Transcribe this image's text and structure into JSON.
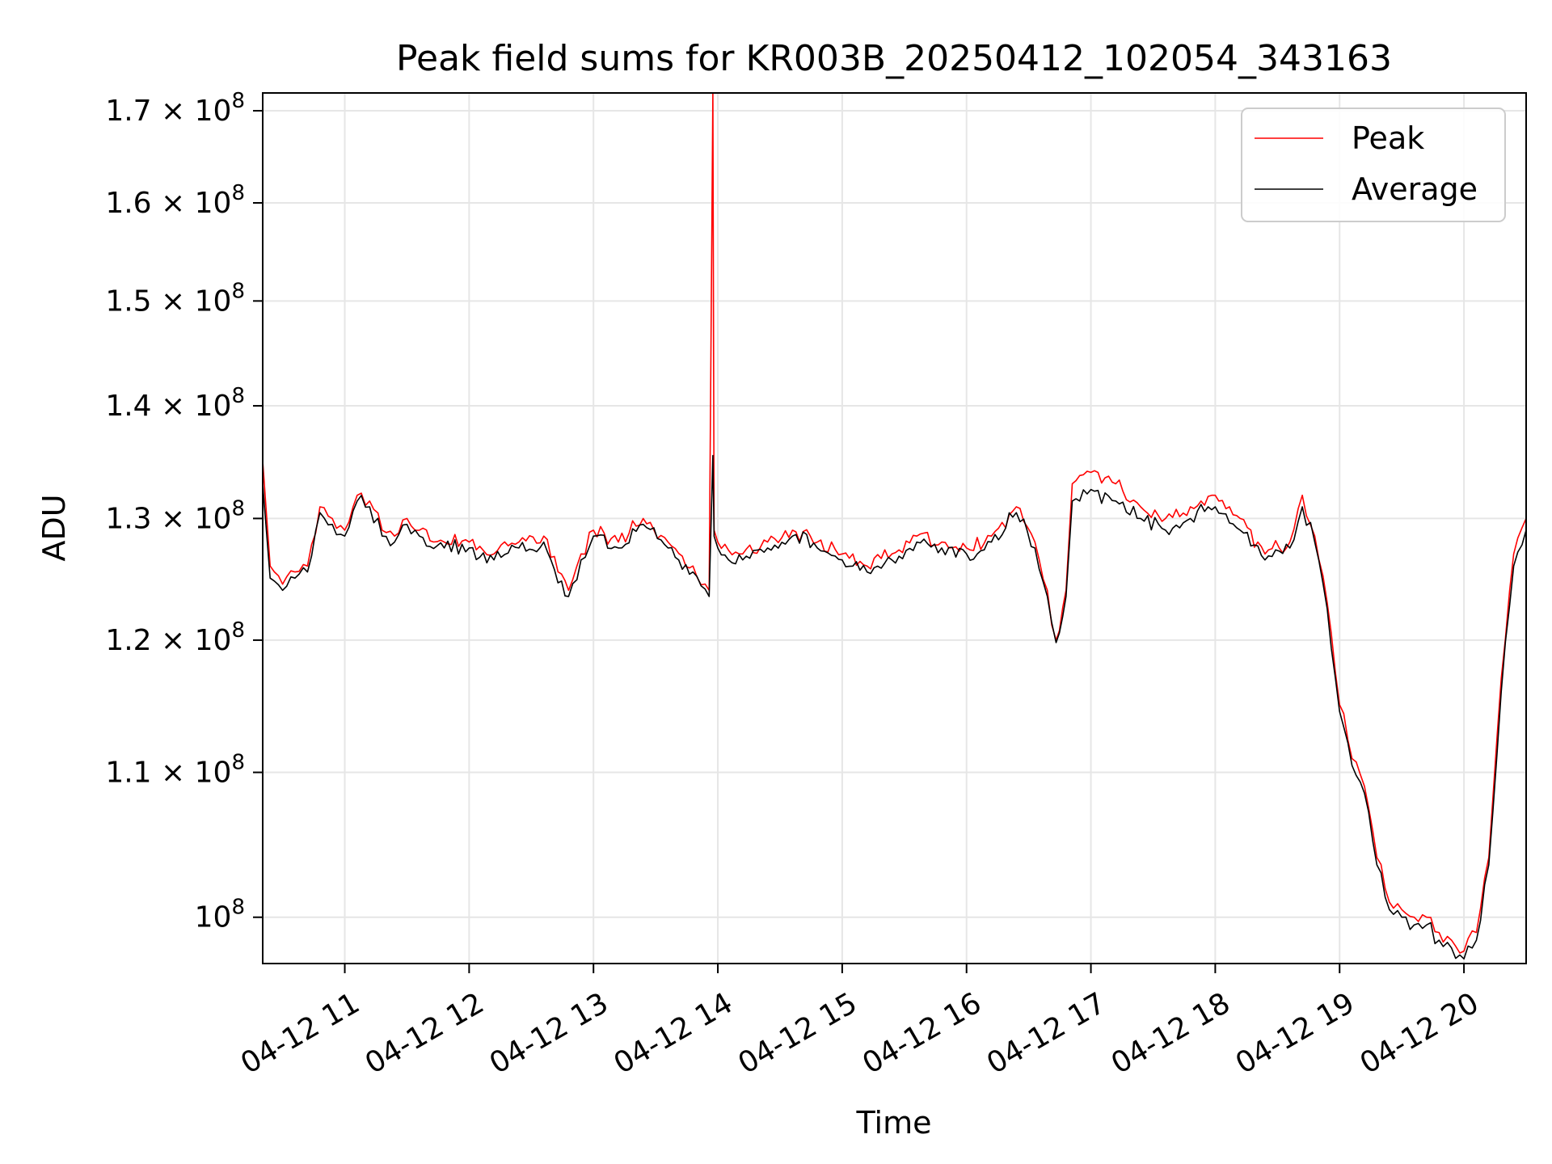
{
  "chart_data": {
    "type": "line",
    "title": "Peak field sums for KR003B_20250412_102054_343163",
    "xlabel": "Time",
    "ylabel": "ADU",
    "yscale": "log",
    "ylim": [
      97000000,
      172000000
    ],
    "xlim": [
      10.34,
      20.5
    ],
    "grid": true,
    "legend_position": "top-right",
    "x_ticks": [
      {
        "value": 11,
        "label": "04-12 11"
      },
      {
        "value": 12,
        "label": "04-12 12"
      },
      {
        "value": 13,
        "label": "04-12 13"
      },
      {
        "value": 14,
        "label": "04-12 14"
      },
      {
        "value": 15,
        "label": "04-12 15"
      },
      {
        "value": 16,
        "label": "04-12 16"
      },
      {
        "value": 17,
        "label": "04-12 17"
      },
      {
        "value": 18,
        "label": "04-12 18"
      },
      {
        "value": 19,
        "label": "04-12 19"
      },
      {
        "value": 20,
        "label": "04-12 20"
      }
    ],
    "y_ticks": [
      {
        "value": 100000000,
        "mantissa": "10",
        "label": "10⁸"
      },
      {
        "value": 110000000,
        "mantissa": "1.1 × 10",
        "label": "1.1 × 10⁸"
      },
      {
        "value": 120000000,
        "mantissa": "1.2 × 10",
        "label": "1.2 × 10⁸"
      },
      {
        "value": 130000000,
        "mantissa": "1.3 × 10",
        "label": "1.3 × 10⁸"
      },
      {
        "value": 140000000,
        "mantissa": "1.4 × 10",
        "label": "1.4 × 10⁸"
      },
      {
        "value": 150000000,
        "mantissa": "1.5 × 10",
        "label": "1.5 × 10⁸"
      },
      {
        "value": 160000000,
        "mantissa": "1.6 × 10",
        "label": "1.6 × 10⁸"
      },
      {
        "value": 170000000,
        "mantissa": "1.7 × 10",
        "label": "1.7 × 10⁸"
      }
    ],
    "y_exponent": "8",
    "series": [
      {
        "name": "Peak",
        "color": "#ff0000",
        "x_hours": [
          10.34,
          10.4,
          10.5,
          10.6,
          10.7,
          10.8,
          10.9,
          11.0,
          11.1,
          11.2,
          11.3,
          11.4,
          11.5,
          11.6,
          11.8,
          12.0,
          12.2,
          12.4,
          12.6,
          12.8,
          12.9,
          13.0,
          13.2,
          13.4,
          13.6,
          13.8,
          13.93,
          13.96,
          13.97,
          14.0,
          14.2,
          14.4,
          14.6,
          14.8,
          15.0,
          15.2,
          15.4,
          15.6,
          15.8,
          16.0,
          16.2,
          16.4,
          16.55,
          16.65,
          16.72,
          16.8,
          16.85,
          17.0,
          17.2,
          17.4,
          17.6,
          17.8,
          18.0,
          18.2,
          18.4,
          18.6,
          18.7,
          18.8,
          18.9,
          19.0,
          19.1,
          19.2,
          19.3,
          19.4,
          19.5,
          19.6,
          19.7,
          19.8,
          19.9,
          20.0,
          20.1,
          20.2,
          20.3,
          20.4,
          20.5
        ],
        "values": [
          135000000,
          126000000,
          124500000,
          125500000,
          126000000,
          131000000,
          130000000,
          129000000,
          132000000,
          131500000,
          129000000,
          128500000,
          130000000,
          129000000,
          128000000,
          128000000,
          127000000,
          128000000,
          128500000,
          124000000,
          127000000,
          129000000,
          128000000,
          130000000,
          128000000,
          126000000,
          124000000,
          172000000,
          129000000,
          128000000,
          127000000,
          128000000,
          129000000,
          128000000,
          127000000,
          126000000,
          127000000,
          128500000,
          128000000,
          127500000,
          128500000,
          131000000,
          128000000,
          124000000,
          120000000,
          124000000,
          133000000,
          134000000,
          133000000,
          131000000,
          130000000,
          131000000,
          132000000,
          130000000,
          127000000,
          128000000,
          132000000,
          128500000,
          123000000,
          115000000,
          111000000,
          109000000,
          104000000,
          101000000,
          100500000,
          100000000,
          100000000,
          99000000,
          98500000,
          97800000,
          99000000,
          104000000,
          117000000,
          127000000,
          130000000
        ]
      },
      {
        "name": "Average",
        "color": "#000000",
        "x_hours": [
          10.34,
          10.4,
          10.5,
          10.6,
          10.7,
          10.8,
          10.9,
          11.0,
          11.1,
          11.2,
          11.3,
          11.4,
          11.5,
          11.6,
          11.8,
          12.0,
          12.2,
          12.4,
          12.6,
          12.8,
          12.9,
          13.0,
          13.2,
          13.4,
          13.6,
          13.8,
          13.93,
          13.96,
          13.97,
          14.0,
          14.2,
          14.4,
          14.6,
          14.8,
          15.0,
          15.2,
          15.4,
          15.6,
          15.8,
          16.0,
          16.2,
          16.4,
          16.55,
          16.65,
          16.72,
          16.8,
          16.85,
          17.0,
          17.2,
          17.4,
          17.6,
          17.8,
          18.0,
          18.2,
          18.4,
          18.6,
          18.7,
          18.8,
          18.9,
          19.0,
          19.1,
          19.2,
          19.3,
          19.4,
          19.5,
          19.6,
          19.7,
          19.8,
          19.9,
          20.0,
          20.1,
          20.2,
          20.3,
          20.4,
          20.5
        ],
        "values": [
          133000000,
          125000000,
          124000000,
          125000000,
          125500000,
          130500000,
          129500000,
          128500000,
          131500000,
          131000000,
          128500000,
          128000000,
          129500000,
          128500000,
          127500000,
          127500000,
          126500000,
          127500000,
          128000000,
          123500000,
          126500000,
          128500000,
          127500000,
          129500000,
          127500000,
          125500000,
          123500000,
          135500000,
          128500000,
          127500000,
          126500000,
          127500000,
          128500000,
          127500000,
          126500000,
          125500000,
          126500000,
          128000000,
          127500000,
          127000000,
          128000000,
          130500000,
          127500000,
          123500000,
          119800000,
          123500000,
          131500000,
          132500000,
          131500000,
          130000000,
          129000000,
          130000000,
          131000000,
          129000000,
          126500000,
          127500000,
          131000000,
          128000000,
          122500000,
          114500000,
          110500000,
          108500000,
          103500000,
          100500000,
          100000000,
          99500000,
          99500000,
          98500000,
          98000000,
          97300000,
          98500000,
          103500000,
          116000000,
          126000000,
          129000000
        ]
      }
    ]
  }
}
